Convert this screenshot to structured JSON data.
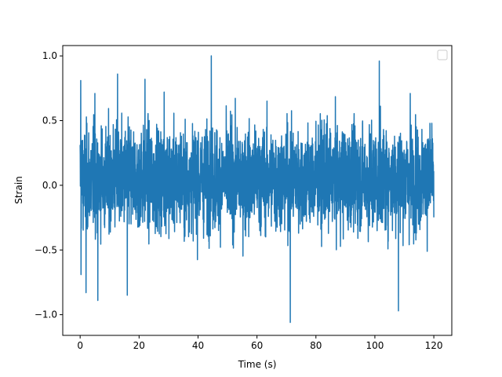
{
  "chart_data": {
    "type": "line",
    "title": "",
    "xlabel": "Time (s)",
    "ylabel": "Strain",
    "xlim": [
      -5.9,
      126.1
    ],
    "ylim": [
      -1.16,
      1.08
    ],
    "xticks": [
      0,
      20,
      40,
      60,
      80,
      100,
      120
    ],
    "xtick_labels": [
      "0",
      "20",
      "40",
      "60",
      "80",
      "100",
      "120"
    ],
    "yticks": [
      -1.0,
      -0.5,
      0.0,
      0.5,
      1.0
    ],
    "ytick_labels": [
      "−1.0",
      "−0.5",
      "0.0",
      "0.5",
      "1.0"
    ],
    "grid": false,
    "legend": {
      "visible": true,
      "placement": "top-right",
      "entries": []
    },
    "series": [
      {
        "color": "#1f77b4",
        "x_range": [
          0,
          120
        ],
        "typical_range": [
          -0.4,
          0.5
        ],
        "sample_peaks": [
          {
            "x": 0.2,
            "y": 0.81
          },
          {
            "x": 0.3,
            "y": -0.69
          },
          {
            "x": 2.0,
            "y": -0.83
          },
          {
            "x": 5.0,
            "y": 0.71
          },
          {
            "x": 6.0,
            "y": -0.89
          },
          {
            "x": 12.7,
            "y": 0.86
          },
          {
            "x": 16.0,
            "y": -0.85
          },
          {
            "x": 22.0,
            "y": 0.82
          },
          {
            "x": 28.5,
            "y": 0.72
          },
          {
            "x": 44.5,
            "y": 1.0
          },
          {
            "x": 71.3,
            "y": -1.06
          },
          {
            "x": 101.5,
            "y": 0.96
          },
          {
            "x": 108.0,
            "y": -0.97
          },
          {
            "x": 112.0,
            "y": 0.71
          }
        ]
      }
    ]
  }
}
